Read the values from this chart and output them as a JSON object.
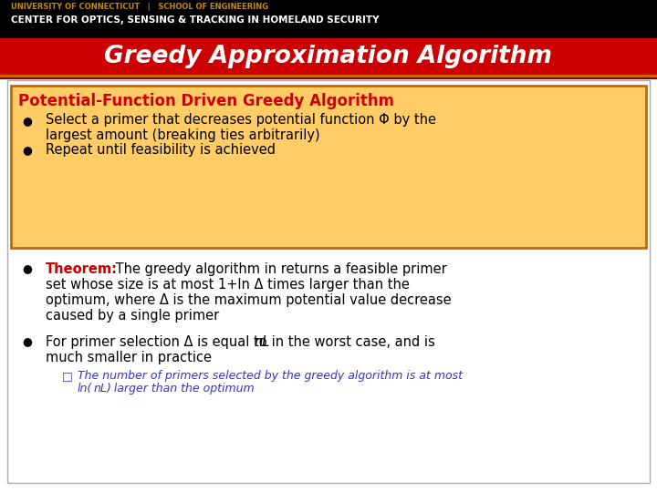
{
  "header_bg": "#000000",
  "header_line1": "UNIVERSITY OF CONNECTICUT   |   SCHOOL OF ENGINEERING",
  "header_line2": "CENTER FOR OPTICS, SENSING & TRACKING IN HOMELAND SECURITY",
  "header_line1_color": "#c8860a",
  "header_line2_color": "#ffffff",
  "title_bg": "#cc0000",
  "title_text": "Greedy Approximation Algorithm",
  "title_color": "#ffffff",
  "title_stripe1_color": "#cc6600",
  "title_stripe2_color": "#800000",
  "main_bg": "#ffffff",
  "box_bg": "#ffcc66",
  "box_border": "#cc6600",
  "box_title": "Potential-Function Driven Greedy Algorithm",
  "box_title_color": "#cc0000",
  "bullet_color": "#000000",
  "theorem_label_color": "#cc0000",
  "theorem_color": "#000000",
  "sub_bullet_color": "#3333cc"
}
